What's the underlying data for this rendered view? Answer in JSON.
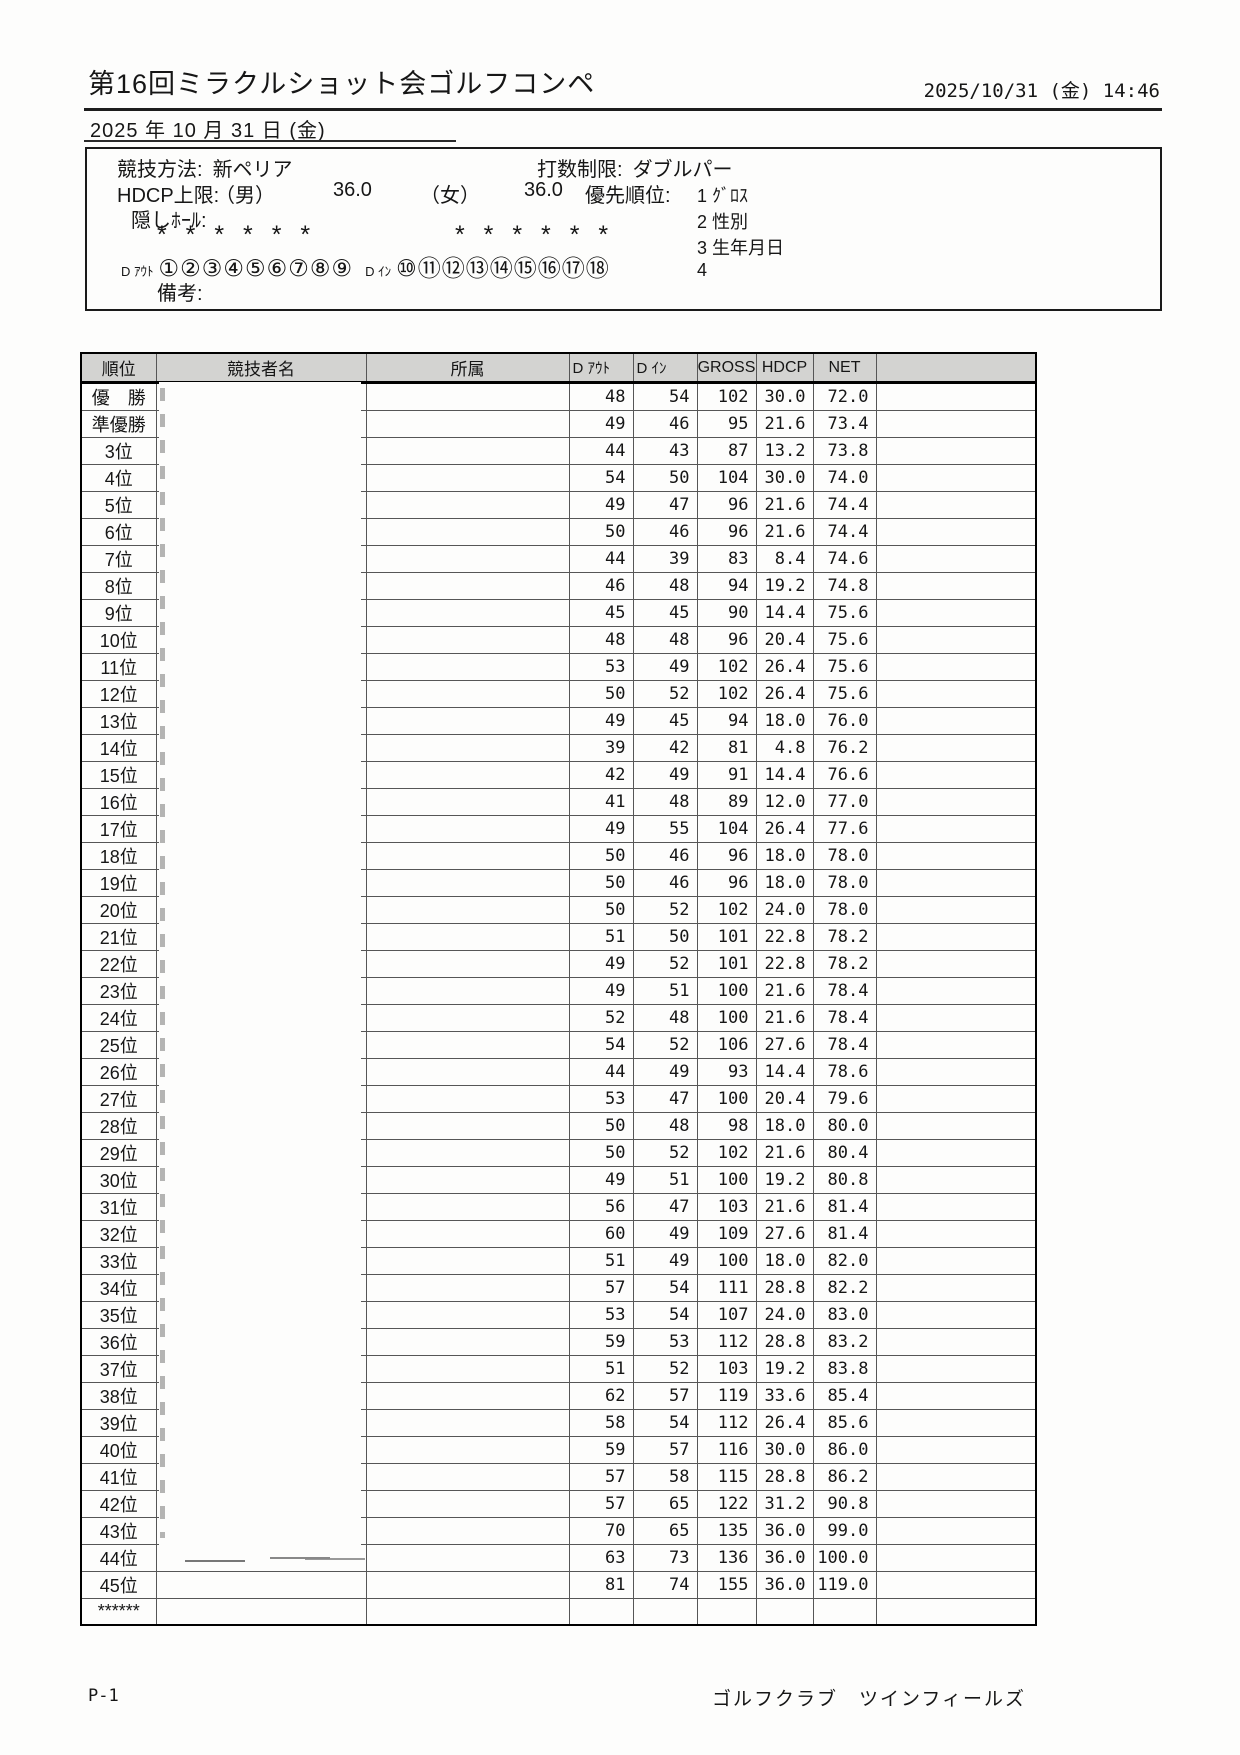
{
  "document": {
    "title": "第16回ミラクルショット会ゴルフコンペ",
    "printed_datetime": "2025/10/31 (金) 14:46",
    "event_date": "2025 年 10 月 31 日 (金)",
    "page_number": "P-1",
    "footer_club": "ゴルフクラブ　ツインフィールズ"
  },
  "settings": {
    "method_label": "競技方法:",
    "method_value": "新ペリア",
    "stroke_limit_label": "打数制限:",
    "stroke_limit_value": "ダブルパー",
    "hdcp_limit_label": "HDCP上限:",
    "male_label": "（男）",
    "male_value": "36.0",
    "female_label": "（女）",
    "female_value": "36.0",
    "priority_label": "優先順位:",
    "priority": [
      "1 ｸﾞﾛｽ",
      "2 性別",
      "3 生年月日",
      "4"
    ],
    "hidden_holes_label": "隠しﾎｰﾙ:",
    "stars_left": "* * * * * *",
    "stars_right": "* * * * * *",
    "out_label": "D ｱｳﾄ",
    "out_circles": "①②③④⑤⑥⑦⑧⑨",
    "in_label": "D ｲﾝ",
    "in_circles": "⑩⑪⑫⑬⑭⑮⑯⑰⑱",
    "remarks_label": "備考:"
  },
  "table": {
    "headers": [
      "順位",
      "競技者名",
      "所属",
      "D ｱｳﾄ",
      "D ｲﾝ",
      "GROSS",
      "HDCP",
      "NET",
      ""
    ],
    "rows": [
      {
        "rank": "優　勝",
        "out": 48,
        "in": 54,
        "gross": 102,
        "hdcp": "30.0",
        "net": "72.0"
      },
      {
        "rank": "準優勝",
        "out": 49,
        "in": 46,
        "gross": 95,
        "hdcp": "21.6",
        "net": "73.4"
      },
      {
        "rank": "3位",
        "out": 44,
        "in": 43,
        "gross": 87,
        "hdcp": "13.2",
        "net": "73.8"
      },
      {
        "rank": "4位",
        "out": 54,
        "in": 50,
        "gross": 104,
        "hdcp": "30.0",
        "net": "74.0"
      },
      {
        "rank": "5位",
        "out": 49,
        "in": 47,
        "gross": 96,
        "hdcp": "21.6",
        "net": "74.4"
      },
      {
        "rank": "6位",
        "out": 50,
        "in": 46,
        "gross": 96,
        "hdcp": "21.6",
        "net": "74.4"
      },
      {
        "rank": "7位",
        "out": 44,
        "in": 39,
        "gross": 83,
        "hdcp": "8.4",
        "net": "74.6"
      },
      {
        "rank": "8位",
        "out": 46,
        "in": 48,
        "gross": 94,
        "hdcp": "19.2",
        "net": "74.8"
      },
      {
        "rank": "9位",
        "out": 45,
        "in": 45,
        "gross": 90,
        "hdcp": "14.4",
        "net": "75.6"
      },
      {
        "rank": "10位",
        "out": 48,
        "in": 48,
        "gross": 96,
        "hdcp": "20.4",
        "net": "75.6"
      },
      {
        "rank": "11位",
        "out": 53,
        "in": 49,
        "gross": 102,
        "hdcp": "26.4",
        "net": "75.6"
      },
      {
        "rank": "12位",
        "out": 50,
        "in": 52,
        "gross": 102,
        "hdcp": "26.4",
        "net": "75.6"
      },
      {
        "rank": "13位",
        "out": 49,
        "in": 45,
        "gross": 94,
        "hdcp": "18.0",
        "net": "76.0"
      },
      {
        "rank": "14位",
        "out": 39,
        "in": 42,
        "gross": 81,
        "hdcp": "4.8",
        "net": "76.2"
      },
      {
        "rank": "15位",
        "out": 42,
        "in": 49,
        "gross": 91,
        "hdcp": "14.4",
        "net": "76.6"
      },
      {
        "rank": "16位",
        "out": 41,
        "in": 48,
        "gross": 89,
        "hdcp": "12.0",
        "net": "77.0"
      },
      {
        "rank": "17位",
        "out": 49,
        "in": 55,
        "gross": 104,
        "hdcp": "26.4",
        "net": "77.6"
      },
      {
        "rank": "18位",
        "out": 50,
        "in": 46,
        "gross": 96,
        "hdcp": "18.0",
        "net": "78.0"
      },
      {
        "rank": "19位",
        "out": 50,
        "in": 46,
        "gross": 96,
        "hdcp": "18.0",
        "net": "78.0"
      },
      {
        "rank": "20位",
        "out": 50,
        "in": 52,
        "gross": 102,
        "hdcp": "24.0",
        "net": "78.0"
      },
      {
        "rank": "21位",
        "out": 51,
        "in": 50,
        "gross": 101,
        "hdcp": "22.8",
        "net": "78.2"
      },
      {
        "rank": "22位",
        "out": 49,
        "in": 52,
        "gross": 101,
        "hdcp": "22.8",
        "net": "78.2"
      },
      {
        "rank": "23位",
        "out": 49,
        "in": 51,
        "gross": 100,
        "hdcp": "21.6",
        "net": "78.4"
      },
      {
        "rank": "24位",
        "out": 52,
        "in": 48,
        "gross": 100,
        "hdcp": "21.6",
        "net": "78.4"
      },
      {
        "rank": "25位",
        "out": 54,
        "in": 52,
        "gross": 106,
        "hdcp": "27.6",
        "net": "78.4"
      },
      {
        "rank": "26位",
        "out": 44,
        "in": 49,
        "gross": 93,
        "hdcp": "14.4",
        "net": "78.6"
      },
      {
        "rank": "27位",
        "out": 53,
        "in": 47,
        "gross": 100,
        "hdcp": "20.4",
        "net": "79.6"
      },
      {
        "rank": "28位",
        "out": 50,
        "in": 48,
        "gross": 98,
        "hdcp": "18.0",
        "net": "80.0"
      },
      {
        "rank": "29位",
        "out": 50,
        "in": 52,
        "gross": 102,
        "hdcp": "21.6",
        "net": "80.4"
      },
      {
        "rank": "30位",
        "out": 49,
        "in": 51,
        "gross": 100,
        "hdcp": "19.2",
        "net": "80.8"
      },
      {
        "rank": "31位",
        "out": 56,
        "in": 47,
        "gross": 103,
        "hdcp": "21.6",
        "net": "81.4"
      },
      {
        "rank": "32位",
        "out": 60,
        "in": 49,
        "gross": 109,
        "hdcp": "27.6",
        "net": "81.4"
      },
      {
        "rank": "33位",
        "out": 51,
        "in": 49,
        "gross": 100,
        "hdcp": "18.0",
        "net": "82.0"
      },
      {
        "rank": "34位",
        "out": 57,
        "in": 54,
        "gross": 111,
        "hdcp": "28.8",
        "net": "82.2"
      },
      {
        "rank": "35位",
        "out": 53,
        "in": 54,
        "gross": 107,
        "hdcp": "24.0",
        "net": "83.0"
      },
      {
        "rank": "36位",
        "out": 59,
        "in": 53,
        "gross": 112,
        "hdcp": "28.8",
        "net": "83.2"
      },
      {
        "rank": "37位",
        "out": 51,
        "in": 52,
        "gross": 103,
        "hdcp": "19.2",
        "net": "83.8"
      },
      {
        "rank": "38位",
        "out": 62,
        "in": 57,
        "gross": 119,
        "hdcp": "33.6",
        "net": "85.4"
      },
      {
        "rank": "39位",
        "out": 58,
        "in": 54,
        "gross": 112,
        "hdcp": "26.4",
        "net": "85.6"
      },
      {
        "rank": "40位",
        "out": 59,
        "in": 57,
        "gross": 116,
        "hdcp": "30.0",
        "net": "86.0"
      },
      {
        "rank": "41位",
        "out": 57,
        "in": 58,
        "gross": 115,
        "hdcp": "28.8",
        "net": "86.2"
      },
      {
        "rank": "42位",
        "out": 57,
        "in": 65,
        "gross": 122,
        "hdcp": "31.2",
        "net": "90.8"
      },
      {
        "rank": "43位",
        "out": 70,
        "in": 65,
        "gross": 135,
        "hdcp": "36.0",
        "net": "99.0"
      },
      {
        "rank": "44位",
        "out": 63,
        "in": 73,
        "gross": 136,
        "hdcp": "36.0",
        "net": "100.0"
      },
      {
        "rank": "45位",
        "out": 81,
        "in": 74,
        "gross": 155,
        "hdcp": "36.0",
        "net": "119.0"
      },
      {
        "rank": "******",
        "out": "",
        "in": "",
        "gross": "",
        "hdcp": "",
        "net": ""
      }
    ]
  }
}
